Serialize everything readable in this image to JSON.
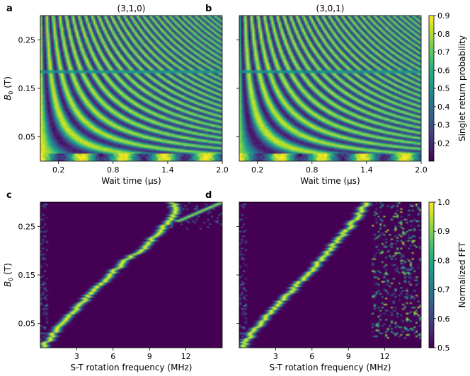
{
  "panels": [
    {
      "id": "a",
      "letter": "a",
      "title": "(3,1,0)",
      "kind": "time",
      "xlabel": "Wait time (μs)",
      "ylabel": "B0 (T)",
      "xticks": [
        "0.2",
        "0.8",
        "1.4",
        "2.0"
      ],
      "yticks": [
        "0.05",
        "0.15",
        "0.25"
      ]
    },
    {
      "id": "b",
      "letter": "b",
      "title": "(3,0,1)",
      "kind": "time",
      "xlabel": "Wait time (μs)",
      "ylabel": "",
      "xticks": [
        "0.2",
        "0.8",
        "1.4",
        "2.0"
      ],
      "yticks": []
    },
    {
      "id": "c",
      "letter": "c",
      "title": "",
      "kind": "fft",
      "xlabel": "S-T rotation frequency (MHz)",
      "ylabel": "B0 (T)",
      "xticks": [
        "3",
        "6",
        "9",
        "12"
      ],
      "yticks": [
        "0.05",
        "0.15",
        "0.25"
      ]
    },
    {
      "id": "d",
      "letter": "d",
      "title": "",
      "kind": "fft",
      "xlabel": "S-T rotation frequency (MHz)",
      "ylabel": "",
      "xticks": [
        "3",
        "6",
        "9",
        "12"
      ],
      "yticks": []
    }
  ],
  "colorbars": [
    {
      "id": "cb-top",
      "label": "Singlet return probability",
      "ticks": [
        "0.2",
        "0.3",
        "0.4",
        "0.5",
        "0.6",
        "0.7",
        "0.8",
        "0.9"
      ]
    },
    {
      "id": "cb-bottom",
      "label": "Normalized FFT",
      "ticks": [
        "0.5",
        "0.6",
        "0.7",
        "0.8",
        "0.9",
        "1.0"
      ]
    }
  ],
  "colormap": "viridis",
  "chart_data": [
    {
      "type": "heatmap",
      "panel": "a",
      "title": "(3,1,0)",
      "xlabel": "Wait time (μs)",
      "ylabel": "B0 (T)",
      "xlim": [
        0.0,
        2.0
      ],
      "ylim": [
        0.0,
        0.3
      ],
      "zlabel": "Singlet return probability",
      "zlim": [
        0.1,
        0.9
      ],
      "description_model": {
        "z": "singlet return probability oscillating in wait time with frequency rising with B0",
        "anomaly_band_B0": 0.185
      }
    },
    {
      "type": "heatmap",
      "panel": "b",
      "title": "(3,0,1)",
      "xlabel": "Wait time (μs)",
      "ylabel": "B0 (T)",
      "xlim": [
        0.0,
        2.0
      ],
      "ylim": [
        0.0,
        0.3
      ],
      "zlabel": "Singlet return probability",
      "zlim": [
        0.1,
        0.9
      ]
    },
    {
      "type": "heatmap",
      "panel": "c",
      "xlabel": "S-T rotation frequency (MHz)",
      "ylabel": "B0 (T)",
      "xlim": [
        0.0,
        15.0
      ],
      "ylim": [
        0.0,
        0.3
      ],
      "zlabel": "Normalized FFT",
      "zlim": [
        0.5,
        1.0
      ],
      "ridge": {
        "B0": [
          0.005,
          0.05,
          0.1,
          0.15,
          0.18,
          0.2,
          0.25,
          0.28,
          0.3
        ],
        "frequency": [
          0.3,
          1.8,
          3.7,
          5.8,
          7.0,
          8.3,
          10.2,
          11.2,
          10.9
        ]
      },
      "branch": {
        "B0": [
          0.26,
          0.3
        ],
        "frequency": [
          11.3,
          15.0
        ]
      }
    },
    {
      "type": "heatmap",
      "panel": "d",
      "xlabel": "S-T rotation frequency (MHz)",
      "ylabel": "B0 (T)",
      "xlim": [
        0.0,
        15.0
      ],
      "ylim": [
        0.0,
        0.3
      ],
      "zlabel": "Normalized FFT",
      "zlim": [
        0.5,
        1.0
      ],
      "ridge": {
        "B0": [
          0.005,
          0.05,
          0.1,
          0.15,
          0.2,
          0.25,
          0.3
        ],
        "frequency": [
          0.3,
          1.7,
          3.6,
          5.6,
          7.4,
          9.1,
          10.6
        ]
      }
    }
  ]
}
